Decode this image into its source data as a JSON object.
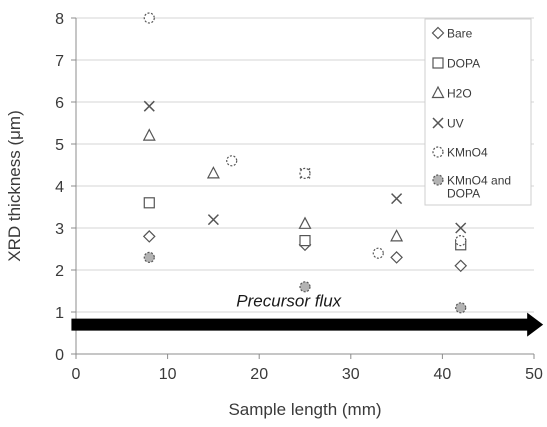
{
  "chart_data": {
    "type": "scatter",
    "title": "",
    "xlabel": "Sample length (mm)",
    "ylabel": "XRD thickness (μm)",
    "xlim": [
      0,
      50
    ],
    "ylim": [
      0,
      8
    ],
    "xticks": [
      0,
      10,
      20,
      30,
      40,
      50
    ],
    "yticks": [
      0,
      1,
      2,
      3,
      4,
      5,
      6,
      7,
      8
    ],
    "grid": "horizontal",
    "legend_position": "top-right",
    "annotation": {
      "text": "Precursor flux",
      "arrow_y": 0.7,
      "arrow_x_start": -0.5,
      "arrow_x_end": 51
    },
    "series": [
      {
        "name": "Bare",
        "marker": "diamond",
        "fill": "#ffffff",
        "points": [
          {
            "x": 8,
            "y": 2.8
          },
          {
            "x": 25,
            "y": 2.6
          },
          {
            "x": 35,
            "y": 2.3
          },
          {
            "x": 42,
            "y": 2.1
          }
        ]
      },
      {
        "name": "DOPA",
        "marker": "square",
        "fill": "#ffffff",
        "points": [
          {
            "x": 8,
            "y": 3.6
          },
          {
            "x": 25,
            "y": 2.7
          },
          {
            "x": 42,
            "y": 2.6
          }
        ]
      },
      {
        "name": "H2O",
        "marker": "triangle",
        "fill": "#ffffff",
        "points": [
          {
            "x": 8,
            "y": 5.2
          },
          {
            "x": 15,
            "y": 4.3
          },
          {
            "x": 25,
            "y": 3.1
          },
          {
            "x": 35,
            "y": 2.8
          }
        ]
      },
      {
        "name": "UV",
        "marker": "x",
        "fill": "none",
        "points": [
          {
            "x": 8,
            "y": 5.9
          },
          {
            "x": 15,
            "y": 3.2
          },
          {
            "x": 25,
            "y": 4.3
          },
          {
            "x": 35,
            "y": 3.7
          },
          {
            "x": 42,
            "y": 3.0
          }
        ]
      },
      {
        "name": "KMnO4",
        "marker": "circle-dashed",
        "fill": "#ffffff",
        "points": [
          {
            "x": 8,
            "y": 8.0
          },
          {
            "x": 17,
            "y": 4.6
          },
          {
            "x": 25,
            "y": 4.3
          },
          {
            "x": 33,
            "y": 2.4
          },
          {
            "x": 42,
            "y": 2.7
          }
        ]
      },
      {
        "name": "KMnO4 and DOPA",
        "marker": "circle-dashed",
        "fill": "#b3b3b3",
        "points": [
          {
            "x": 8,
            "y": 2.3
          },
          {
            "x": 25,
            "y": 1.6
          },
          {
            "x": 42,
            "y": 1.1
          }
        ]
      }
    ],
    "legend_entries": [
      {
        "label": "Bare",
        "marker": "diamond",
        "fill": "#ffffff"
      },
      {
        "label": "DOPA",
        "marker": "square",
        "fill": "#ffffff"
      },
      {
        "label": "H2O",
        "marker": "triangle",
        "fill": "#ffffff"
      },
      {
        "label": "UV",
        "marker": "x",
        "fill": "none"
      },
      {
        "label": "KMnO4",
        "marker": "circle-dashed",
        "fill": "#ffffff"
      },
      {
        "label_lines": [
          "KMnO4 and",
          "DOPA"
        ],
        "marker": "circle-dashed",
        "fill": "#b3b3b3"
      }
    ],
    "colors": {
      "marker_stroke": "#555555",
      "axis": "#8c8c8c",
      "grid": "#d4d4d4",
      "arrow": "#000000",
      "text": "#3a3a3a"
    }
  }
}
